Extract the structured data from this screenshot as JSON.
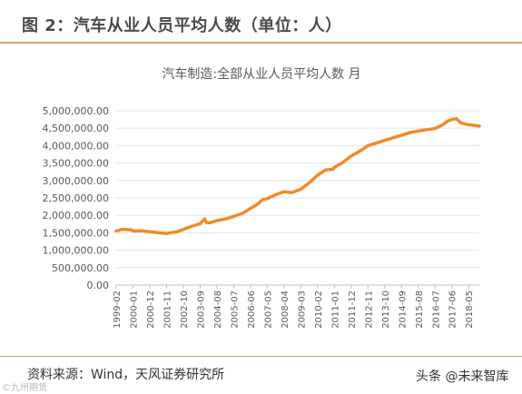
{
  "header": {
    "title": "图 2：汽车从业人员平均人数（单位：人）"
  },
  "footer": {
    "source": "资料来源：Wind，天风证券研究所",
    "watermark_left": "©九州期货",
    "watermark_right": "头条 @未来智库"
  },
  "colors": {
    "line": "#f08a2a",
    "accent_rule": "#c9a96a",
    "grid": "#e6e6e6",
    "text": "#595959"
  },
  "chart_data": {
    "type": "line",
    "title": "汽车制造:全部从业人员平均人数 月",
    "xlabel": "",
    "ylabel": "",
    "ylim": [
      0,
      5000000
    ],
    "grid": "horizontal",
    "legend": "none",
    "y_ticks": [
      "0.00",
      "500,000.00",
      "1,000,000.00",
      "1,500,000.00",
      "2,000,000.00",
      "2,500,000.00",
      "3,000,000.00",
      "3,500,000.00",
      "4,000,000.00",
      "4,500,000.00",
      "5,000,000.00"
    ],
    "x_ticks": [
      "1999-02",
      "2000-01",
      "2000-12",
      "2001-11",
      "2002-10",
      "2003-09",
      "2004-08",
      "2005-07",
      "2006-06",
      "2007-05",
      "2008-04",
      "2009-03",
      "2010-02",
      "2011-01",
      "2011-12",
      "2012-11",
      "2013-10",
      "2014-09",
      "2015-08",
      "2016-07",
      "2017-06",
      "2018-05"
    ],
    "series": [
      {
        "x": [
          "1999-02",
          "1999-06",
          "1999-12",
          "2000-01",
          "2000-06",
          "2000-12",
          "2001-06",
          "2001-11",
          "2002-06",
          "2002-10",
          "2003-03",
          "2003-06",
          "2003-09",
          "2003-12",
          "2004-01",
          "2004-03",
          "2004-08",
          "2005-02",
          "2005-07",
          "2006-01",
          "2006-06",
          "2006-10",
          "2007-02",
          "2007-05",
          "2007-10",
          "2008-04",
          "2008-09",
          "2009-03",
          "2009-09",
          "2010-02",
          "2010-07",
          "2010-12",
          "2011-01",
          "2011-06",
          "2011-12",
          "2012-06",
          "2012-11",
          "2013-05",
          "2013-10",
          "2014-03",
          "2014-09",
          "2015-03",
          "2015-08",
          "2016-02",
          "2016-07",
          "2016-12",
          "2017-03",
          "2017-06",
          "2017-09",
          "2017-12",
          "2018-05",
          "2018-09",
          "2018-12"
        ],
        "values": [
          1550000,
          1600000,
          1580000,
          1550000,
          1560000,
          1530000,
          1500000,
          1480000,
          1530000,
          1600000,
          1680000,
          1720000,
          1760000,
          1900000,
          1800000,
          1780000,
          1850000,
          1900000,
          1970000,
          2060000,
          2200000,
          2300000,
          2450000,
          2480000,
          2580000,
          2680000,
          2650000,
          2750000,
          2950000,
          3150000,
          3300000,
          3320000,
          3380000,
          3500000,
          3700000,
          3850000,
          4000000,
          4080000,
          4150000,
          4220000,
          4300000,
          4380000,
          4420000,
          4460000,
          4490000,
          4600000,
          4700000,
          4750000,
          4770000,
          4650000,
          4600000,
          4580000,
          4560000
        ]
      }
    ]
  }
}
